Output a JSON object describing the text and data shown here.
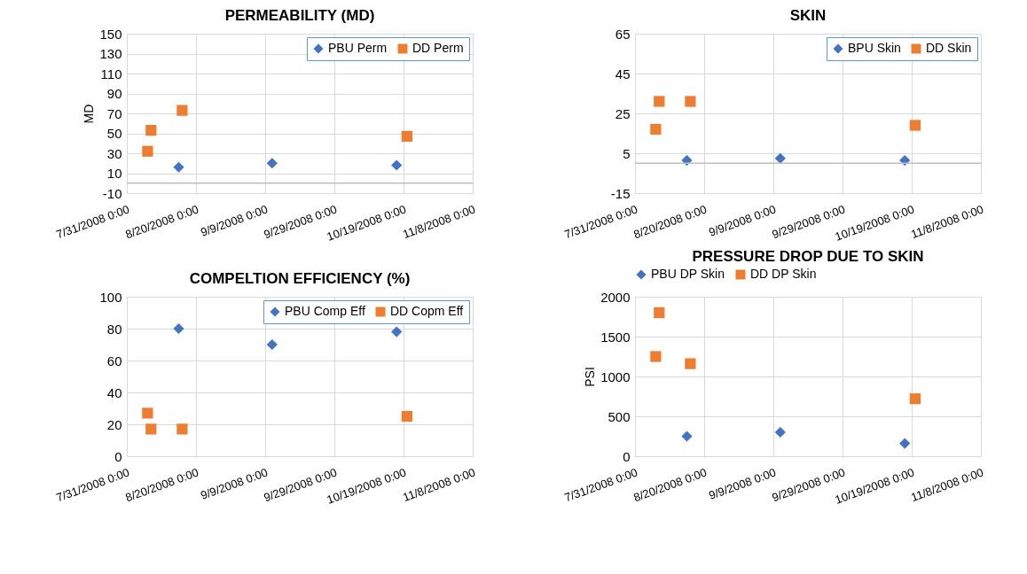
{
  "chart_data": [
    {
      "type": "scatter",
      "title": "PERMEABILITY (MD)",
      "ylabel": "MD",
      "ylim": [
        -10,
        150
      ],
      "yticks": [
        -10,
        10,
        30,
        50,
        70,
        90,
        110,
        130,
        150
      ],
      "xlim": [
        "2008-07-31",
        "2008-11-08"
      ],
      "xticks": [
        {
          "value": "2008-07-31",
          "label": "7/31/2008 0:00"
        },
        {
          "value": "2008-08-20",
          "label": "8/20/2008 0:00"
        },
        {
          "value": "2008-09-09",
          "label": "9/9/2008 0:00"
        },
        {
          "value": "2008-09-29",
          "label": "9/29/2008 0:00"
        },
        {
          "value": "2008-10-19",
          "label": "10/19/2008 0:00"
        },
        {
          "value": "2008-11-08",
          "label": "11/8/2008 0:00"
        }
      ],
      "grid": true,
      "legend": "top right",
      "ref_lines": [
        {
          "axis": "y",
          "value": 0,
          "color": "#bfbfbf"
        }
      ],
      "series": [
        {
          "name": "PBU Perm",
          "color": "#4472c4",
          "marker": "diamond",
          "x": [
            "2008-08-15",
            "2008-09-11",
            "2008-10-17"
          ],
          "values": [
            16,
            20,
            18
          ]
        },
        {
          "name": "DD Perm",
          "color": "#ed7d31",
          "marker": "square",
          "x": [
            "2008-08-06",
            "2008-08-07",
            "2008-08-16",
            "2008-10-20"
          ],
          "values": [
            32,
            53,
            73,
            47
          ]
        }
      ]
    },
    {
      "type": "scatter",
      "title": "SKIN",
      "ylim": [
        -15,
        65
      ],
      "yticks": [
        -15,
        5,
        25,
        45,
        65
      ],
      "xlim": [
        "2008-07-31",
        "2008-11-08"
      ],
      "xticks": [
        {
          "value": "2008-07-31",
          "label": "7/31/2008 0:00"
        },
        {
          "value": "2008-08-20",
          "label": "8/20/2008 0:00"
        },
        {
          "value": "2008-09-09",
          "label": "9/9/2008 0:00"
        },
        {
          "value": "2008-09-29",
          "label": "9/29/2008 0:00"
        },
        {
          "value": "2008-10-19",
          "label": "10/19/2008 0:00"
        },
        {
          "value": "2008-11-08",
          "label": "11/8/2008 0:00"
        }
      ],
      "grid": true,
      "legend": "top right",
      "ref_lines": [
        {
          "axis": "y",
          "value": 0,
          "color": "#bfbfbf"
        }
      ],
      "series": [
        {
          "name": "BPU Skin",
          "color": "#4472c4",
          "marker": "diamond",
          "x": [
            "2008-08-15",
            "2008-09-11",
            "2008-10-17"
          ],
          "values": [
            1.4,
            2.4,
            1.4
          ]
        },
        {
          "name": "DD Skin",
          "color": "#ed7d31",
          "marker": "square",
          "x": [
            "2008-08-06",
            "2008-08-07",
            "2008-08-16",
            "2008-10-20"
          ],
          "values": [
            17,
            31,
            31,
            19
          ]
        }
      ]
    },
    {
      "type": "scatter",
      "title": "COMPELTION EFFICIENCY (%)",
      "ylim": [
        0,
        100
      ],
      "yticks": [
        0,
        20,
        40,
        60,
        80,
        100
      ],
      "xlim": [
        "2008-07-31",
        "2008-11-08"
      ],
      "xticks": [
        {
          "value": "2008-07-31",
          "label": "7/31/2008 0:00"
        },
        {
          "value": "2008-08-20",
          "label": "8/20/2008 0:00"
        },
        {
          "value": "2008-09-09",
          "label": "9/9/2008 0:00"
        },
        {
          "value": "2008-09-29",
          "label": "9/29/2008 0:00"
        },
        {
          "value": "2008-10-19",
          "label": "10/19/2008 0:00"
        },
        {
          "value": "2008-11-08",
          "label": "11/8/2008 0:00"
        }
      ],
      "grid": true,
      "legend": "top right",
      "series": [
        {
          "name": "PBU Comp Eff",
          "color": "#4472c4",
          "marker": "diamond",
          "x": [
            "2008-08-15",
            "2008-09-11",
            "2008-10-17"
          ],
          "values": [
            80,
            70,
            78
          ]
        },
        {
          "name": "DD Copm Eff",
          "color": "#ed7d31",
          "marker": "square",
          "x": [
            "2008-08-06",
            "2008-08-07",
            "2008-08-16",
            "2008-10-20"
          ],
          "values": [
            27,
            17,
            17,
            25
          ]
        }
      ]
    },
    {
      "type": "scatter",
      "title": "PRESSURE DROP DUE TO SKIN",
      "ylabel": "PSI",
      "ylim": [
        0,
        2000
      ],
      "yticks": [
        0,
        500,
        1000,
        1500,
        2000
      ],
      "xlim": [
        "2008-07-31",
        "2008-11-08"
      ],
      "xticks": [
        {
          "value": "2008-07-31",
          "label": "7/31/2008 0:00"
        },
        {
          "value": "2008-08-20",
          "label": "8/20/2008 0:00"
        },
        {
          "value": "2008-09-09",
          "label": "9/9/2008 0:00"
        },
        {
          "value": "2008-09-29",
          "label": "9/29/2008 0:00"
        },
        {
          "value": "2008-10-19",
          "label": "10/19/2008 0:00"
        },
        {
          "value": "2008-11-08",
          "label": "11/8/2008 0:00"
        }
      ],
      "grid": true,
      "legend": "top",
      "series": [
        {
          "name": "PBU DP Skin",
          "color": "#4472c4",
          "marker": "diamond",
          "x": [
            "2008-08-15",
            "2008-09-11",
            "2008-10-17"
          ],
          "values": [
            250,
            300,
            160
          ]
        },
        {
          "name": "DD DP Skin",
          "color": "#ed7d31",
          "marker": "square",
          "x": [
            "2008-08-06",
            "2008-08-07",
            "2008-08-16",
            "2008-10-20"
          ],
          "values": [
            1250,
            1800,
            1160,
            720
          ]
        }
      ]
    }
  ]
}
